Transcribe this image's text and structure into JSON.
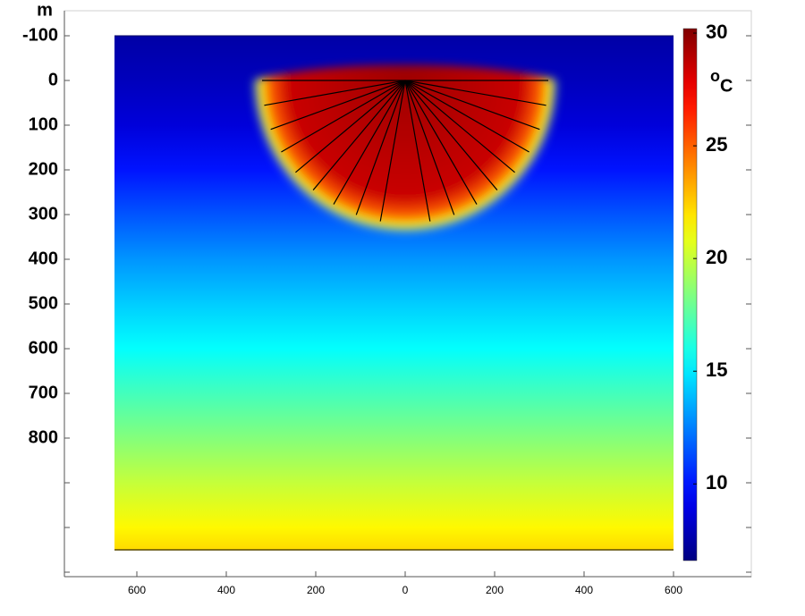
{
  "chart_data": {
    "type": "heatmap",
    "y_label": "m",
    "colorbar_label": {
      "superscript": "o",
      "text": "C"
    },
    "xlim": [
      -762,
      774
    ],
    "ylim": [
      -156,
      1110
    ],
    "xticks": [
      {
        "value": -600,
        "label": "600"
      },
      {
        "value": -400,
        "label": "400"
      },
      {
        "value": -200,
        "label": "200"
      },
      0,
      200,
      400,
      600
    ],
    "yticks": [
      -100,
      0,
      100,
      200,
      300,
      400,
      500,
      600,
      700,
      800
    ],
    "yticks_unlabeled": [
      900,
      1000,
      1100
    ],
    "zlim": [
      6.6,
      30.2
    ],
    "zticks": [
      10,
      15,
      20,
      25,
      30
    ],
    "colormap": "jet",
    "domain": {
      "x": [
        -650,
        600
      ],
      "y": [
        -100,
        1050
      ]
    },
    "profile": {
      "depth": [
        -100,
        0,
        100,
        200,
        300,
        400,
        500,
        600,
        700,
        800,
        900,
        1000,
        1050
      ],
      "temperature": [
        7.5,
        8,
        8.7,
        10,
        11.5,
        13,
        14.3,
        15.5,
        17,
        18.5,
        20,
        21.5,
        22.2
      ]
    },
    "heated_zone": {
      "radius": 345,
      "radius_fraction": [
        0,
        0.75,
        0.88,
        0.95,
        1
      ],
      "temperature": [
        29.5,
        28.5,
        25,
        21,
        13
      ]
    },
    "boreholes": {
      "length": 320,
      "angles": [
        0,
        10,
        20,
        30,
        40,
        50,
        60,
        70,
        80,
        100,
        110,
        120,
        130,
        140,
        150,
        160,
        170,
        180
      ],
      "color": "#000000"
    }
  }
}
